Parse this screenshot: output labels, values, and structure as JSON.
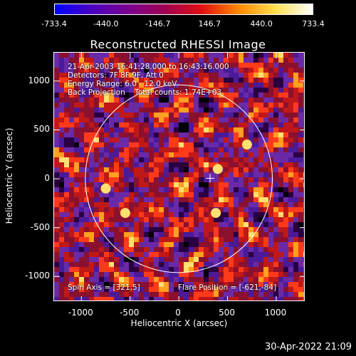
{
  "colors": {
    "background": "#000000",
    "palette": [
      "#0000ff",
      "#4a00c0",
      "#7a0090",
      "#a00050",
      "#e01010",
      "#ff8800",
      "#ffe050",
      "#ffffff"
    ]
  },
  "colorbar": {
    "ticks": [
      "-733.4",
      "-440.0",
      "-146.7",
      "146.7",
      "440.0",
      "733.4"
    ],
    "range": [
      -733.4,
      733.4
    ]
  },
  "chart_data": {
    "type": "heatmap",
    "title": "Reconstructed RHESSI Image",
    "xlabel": "Heliocentric X (arcsec)",
    "ylabel": "Heliocentric Y (arcsec)",
    "xlim": [
      -1280,
      1300
    ],
    "ylim": [
      -1260,
      1290
    ],
    "xticks": [
      "-1000",
      "-500",
      "0",
      "500",
      "1000"
    ],
    "yticks": [
      "1000",
      "500",
      "0",
      "-500",
      "-1000"
    ],
    "xtick_values": [
      -1000,
      -500,
      0,
      500,
      1000
    ],
    "ytick_values": [
      1000,
      500,
      0,
      -500,
      -1000
    ],
    "solar_limb": {
      "center": [
        0,
        0
      ],
      "radius_arcsec": 960
    },
    "spin_axis_marker": [
      321,
      5
    ],
    "annotations": {
      "line1": "21-Apr-2003 16:41:28.000 to 16:43:16.000",
      "line2": "Detectors: 7F 8F 9F, Att 0",
      "line3": "Energy Range: 6.0 - 12.0 keV",
      "line4": "Back Projection    Total counts: 1.74E+03",
      "spin_axis": "Spin Axis = [321,5]",
      "flare_position": "Flare Position = [-621,-84]"
    },
    "bright_sources": [
      {
        "x": -750,
        "y": -100
      },
      {
        "x": -550,
        "y": -350
      },
      {
        "x": 400,
        "y": 100
      },
      {
        "x": 700,
        "y": 350
      },
      {
        "x": 380,
        "y": -350
      }
    ]
  },
  "footer": {
    "timestamp": "30-Apr-2022 21:09"
  }
}
